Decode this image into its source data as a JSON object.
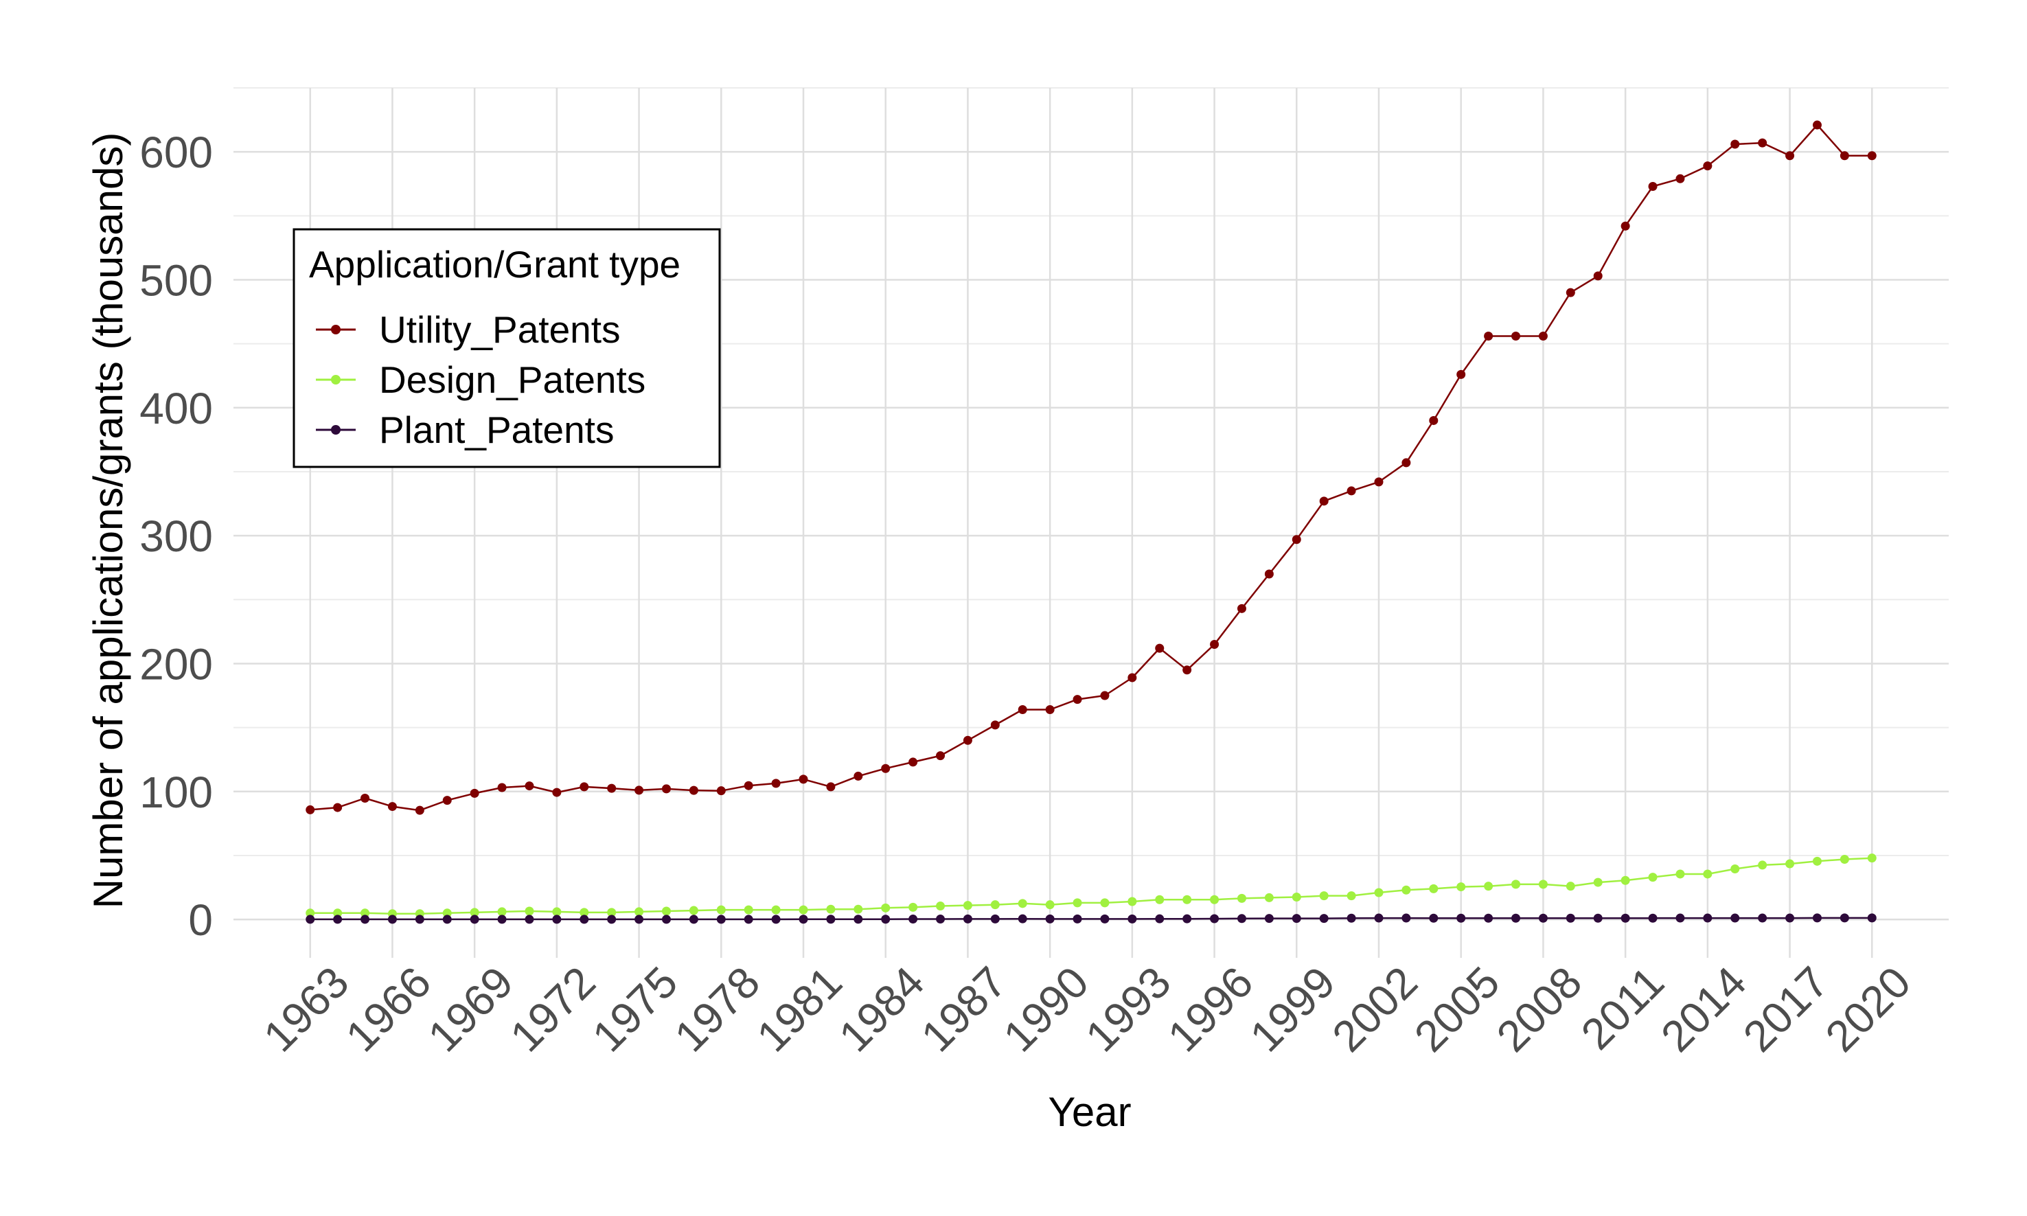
{
  "chart_data": {
    "type": "line",
    "title": "",
    "xlabel": "Year",
    "ylabel": "Number of applications/grants (thousands)",
    "xlim": [
      1960.2,
      2022.8
    ],
    "ylim": [
      -30,
      650
    ],
    "grid": true,
    "y_ticks": [
      0,
      100,
      200,
      300,
      400,
      500,
      600
    ],
    "x_ticks": [
      1963,
      1966,
      1969,
      1972,
      1975,
      1978,
      1981,
      1984,
      1987,
      1990,
      1993,
      1996,
      1999,
      2002,
      2005,
      2008,
      2011,
      2014,
      2017,
      2020
    ],
    "x_tick_labels": [
      "1963",
      "1966",
      "1969",
      "1972",
      "1975",
      "1978",
      "1981",
      "1984",
      "1987",
      "1990",
      "1993",
      "1996",
      "1999",
      "2002",
      "2005",
      "2008",
      "2011",
      "2014",
      "2017",
      "2020"
    ],
    "y_tick_labels": [
      "0",
      "100",
      "200",
      "300",
      "400",
      "500",
      "600"
    ],
    "legend": {
      "title": "Application/Grant type",
      "position": "top-left",
      "entries": [
        "Utility_Patents",
        "Design_Patents",
        "Plant_Patents"
      ]
    },
    "x": [
      1963,
      1964,
      1965,
      1966,
      1967,
      1968,
      1969,
      1970,
      1971,
      1972,
      1973,
      1974,
      1975,
      1976,
      1977,
      1978,
      1979,
      1980,
      1981,
      1982,
      1983,
      1984,
      1985,
      1986,
      1987,
      1988,
      1989,
      1990,
      1991,
      1992,
      1993,
      1994,
      1995,
      1996,
      1997,
      1998,
      1999,
      2000,
      2001,
      2002,
      2003,
      2004,
      2005,
      2006,
      2007,
      2008,
      2009,
      2010,
      2011,
      2012,
      2013,
      2014,
      2015,
      2016,
      2017,
      2018,
      2019,
      2020
    ],
    "series": [
      {
        "name": "Utility_Patents",
        "color": "#7f0000",
        "values": [
          85.7,
          87.5,
          94.8,
          88.3,
          85.3,
          93.1,
          98.6,
          103.1,
          104.4,
          99.3,
          103.7,
          102.5,
          101.0,
          102.1,
          100.9,
          100.6,
          104.6,
          106.4,
          109.6,
          103.7,
          112.0,
          118.0,
          123.0,
          128.0,
          140.0,
          152.0,
          164.0,
          164.0,
          172.0,
          175.0,
          189.0,
          212.0,
          195.0,
          215.0,
          243.0,
          270.0,
          297.0,
          327.0,
          335.0,
          342.0,
          357.0,
          390.0,
          426.0,
          456.0,
          456.0,
          456.0,
          490.0,
          503.0,
          542.0,
          573.0,
          579.0,
          589.0,
          606.0,
          607.0,
          597.0,
          621.0,
          597.0,
          597.0
        ]
      },
      {
        "name": "Design_Patents",
        "color": "#a0f040",
        "values": [
          5.0,
          5.0,
          5.0,
          4.5,
          4.5,
          5.0,
          5.5,
          6.0,
          6.5,
          6.0,
          5.5,
          5.5,
          6.0,
          6.5,
          7.0,
          7.5,
          7.5,
          7.5,
          7.5,
          8.0,
          8.0,
          9.0,
          9.5,
          10.5,
          11.0,
          11.5,
          12.5,
          11.5,
          13.0,
          13.0,
          14.0,
          15.5,
          15.5,
          15.5,
          16.5,
          17.0,
          17.5,
          18.5,
          18.5,
          21.0,
          23.0,
          24.0,
          25.5,
          26.0,
          27.5,
          27.5,
          26.0,
          29.0,
          30.5,
          33.0,
          35.5,
          35.5,
          39.5,
          42.5,
          43.5,
          45.5,
          47.0,
          48.0
        ]
      },
      {
        "name": "Plant_Patents",
        "color": "#2d0a3a",
        "values": [
          0.1,
          0.1,
          0.1,
          0.1,
          0.1,
          0.1,
          0.1,
          0.1,
          0.1,
          0.1,
          0.1,
          0.1,
          0.1,
          0.1,
          0.1,
          0.1,
          0.1,
          0.1,
          0.2,
          0.2,
          0.2,
          0.2,
          0.3,
          0.3,
          0.4,
          0.4,
          0.5,
          0.4,
          0.4,
          0.4,
          0.4,
          0.5,
          0.5,
          0.6,
          0.7,
          0.8,
          0.8,
          0.8,
          1.0,
          1.1,
          1.1,
          1.0,
          1.0,
          1.0,
          1.0,
          1.0,
          1.0,
          1.0,
          1.0,
          1.0,
          1.1,
          1.1,
          1.1,
          1.1,
          1.1,
          1.2,
          1.2,
          1.2
        ]
      }
    ]
  }
}
